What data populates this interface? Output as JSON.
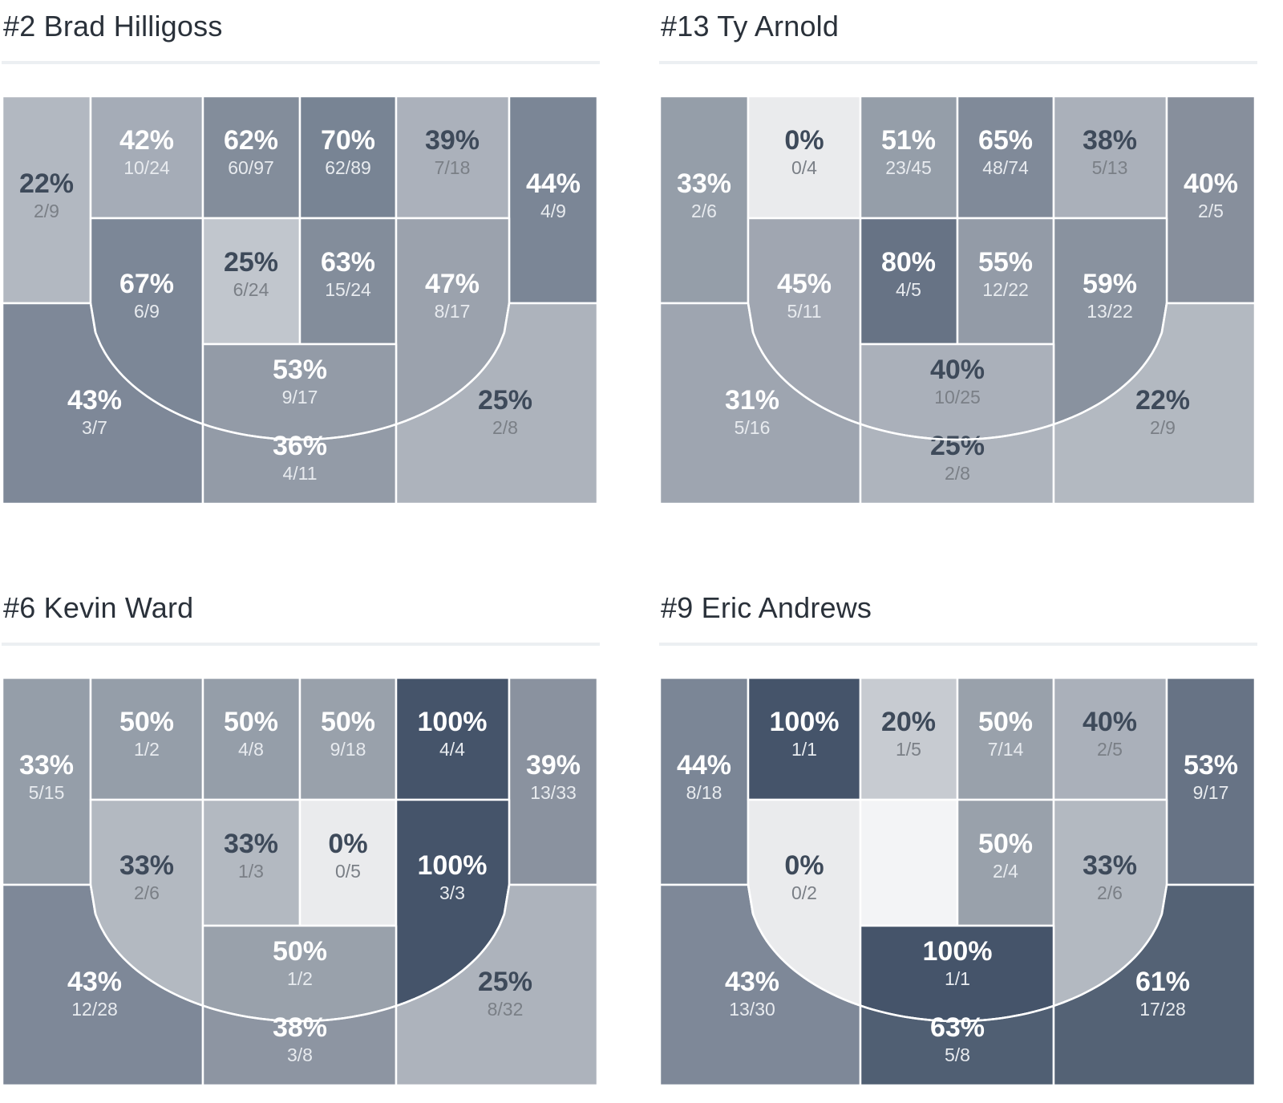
{
  "chart_data": [
    {
      "type": "heatmap",
      "title": "#2 Brad Hilligoss",
      "subtype": "basketball shot chart (zone FG%)",
      "zones": [
        {
          "zone": "left-corner-3",
          "pct": "22%",
          "made_att": "2/9",
          "color": "#b2b8c1"
        },
        {
          "zone": "left-wing-3",
          "pct": "43%",
          "made_att": "3/7",
          "color": "#7e8898"
        },
        {
          "zone": "left-mid-top",
          "pct": "42%",
          "made_att": "10/24",
          "color": "#a5acb7"
        },
        {
          "zone": "paint-left-top",
          "pct": "62%",
          "made_att": "60/97",
          "color": "#838d9b"
        },
        {
          "zone": "paint-right-top",
          "pct": "70%",
          "made_att": "62/89",
          "color": "#788494"
        },
        {
          "zone": "right-mid-top",
          "pct": "39%",
          "made_att": "7/18",
          "color": "#abb1bb"
        },
        {
          "zone": "right-corner-3",
          "pct": "44%",
          "made_att": "4/9",
          "color": "#7b8696"
        },
        {
          "zone": "left-mid-low",
          "pct": "67%",
          "made_att": "6/9",
          "color": "#7c8797"
        },
        {
          "zone": "paint-left",
          "pct": "25%",
          "made_att": "6/24",
          "color": "#c1c6cd"
        },
        {
          "zone": "paint-right",
          "pct": "63%",
          "made_att": "15/24",
          "color": "#838d9b"
        },
        {
          "zone": "right-mid-low",
          "pct": "47%",
          "made_att": "8/17",
          "color": "#9ba2ad"
        },
        {
          "zone": "free-throw",
          "pct": "53%",
          "made_att": "9/17",
          "color": "#939ba7"
        },
        {
          "zone": "top-key-3",
          "pct": "36%",
          "made_att": "4/11",
          "color": "#939ba7"
        },
        {
          "zone": "right-wing-3",
          "pct": "25%",
          "made_att": "2/8",
          "color": "#adb3bc"
        }
      ]
    },
    {
      "type": "heatmap",
      "title": "#13 Ty Arnold",
      "subtype": "basketball shot chart (zone FG%)",
      "zones": [
        {
          "zone": "left-corner-3",
          "pct": "33%",
          "made_att": "2/6",
          "color": "#959ea9"
        },
        {
          "zone": "left-wing-3",
          "pct": "31%",
          "made_att": "5/16",
          "color": "#9ea5b0"
        },
        {
          "zone": "left-mid-top",
          "pct": "0%",
          "made_att": "0/4",
          "color": "#eaebed"
        },
        {
          "zone": "paint-left-top",
          "pct": "51%",
          "made_att": "23/45",
          "color": "#959ea9"
        },
        {
          "zone": "paint-right-top",
          "pct": "65%",
          "made_att": "48/74",
          "color": "#808a99"
        },
        {
          "zone": "right-mid-top",
          "pct": "38%",
          "made_att": "5/13",
          "color": "#aab0ba"
        },
        {
          "zone": "right-corner-3",
          "pct": "40%",
          "made_att": "2/5",
          "color": "#878f9c"
        },
        {
          "zone": "left-mid-low",
          "pct": "45%",
          "made_att": "5/11",
          "color": "#a0a6b1"
        },
        {
          "zone": "paint-left",
          "pct": "80%",
          "made_att": "4/5",
          "color": "#677385"
        },
        {
          "zone": "paint-right",
          "pct": "55%",
          "made_att": "12/22",
          "color": "#939ba7"
        },
        {
          "zone": "right-mid-low",
          "pct": "59%",
          "made_att": "13/22",
          "color": "#89929f"
        },
        {
          "zone": "free-throw",
          "pct": "40%",
          "made_att": "10/25",
          "color": "#aab0ba"
        },
        {
          "zone": "top-key-3",
          "pct": "25%",
          "made_att": "2/8",
          "color": "#aeb4bd"
        },
        {
          "zone": "right-wing-3",
          "pct": "22%",
          "made_att": "2/9",
          "color": "#b3b9c1"
        }
      ]
    },
    {
      "type": "heatmap",
      "title": "#6 Kevin Ward",
      "subtype": "basketball shot chart (zone FG%)",
      "zones": [
        {
          "zone": "left-corner-3",
          "pct": "33%",
          "made_att": "5/15",
          "color": "#959ea9"
        },
        {
          "zone": "left-wing-3",
          "pct": "43%",
          "made_att": "12/28",
          "color": "#7e8898"
        },
        {
          "zone": "left-mid-top",
          "pct": "50%",
          "made_att": "1/2",
          "color": "#959ea9"
        },
        {
          "zone": "paint-left-top",
          "pct": "50%",
          "made_att": "4/8",
          "color": "#959ea9"
        },
        {
          "zone": "paint-right-top",
          "pct": "50%",
          "made_att": "9/18",
          "color": "#99a1ab"
        },
        {
          "zone": "right-mid-top",
          "pct": "100%",
          "made_att": "4/4",
          "color": "#45546a"
        },
        {
          "zone": "right-corner-3",
          "pct": "39%",
          "made_att": "13/33",
          "color": "#8a929f"
        },
        {
          "zone": "left-mid-low",
          "pct": "33%",
          "made_att": "2/6",
          "color": "#b3b9c1"
        },
        {
          "zone": "paint-left",
          "pct": "33%",
          "made_att": "1/3",
          "color": "#b3b9c1"
        },
        {
          "zone": "paint-right",
          "pct": "0%",
          "made_att": "0/5",
          "color": "#eaebed"
        },
        {
          "zone": "right-mid-low",
          "pct": "100%",
          "made_att": "3/3",
          "color": "#45546a"
        },
        {
          "zone": "free-throw",
          "pct": "50%",
          "made_att": "1/2",
          "color": "#99a1ab"
        },
        {
          "zone": "top-key-3",
          "pct": "38%",
          "made_att": "3/8",
          "color": "#8d95a2"
        },
        {
          "zone": "right-wing-3",
          "pct": "25%",
          "made_att": "8/32",
          "color": "#adb3bc"
        }
      ]
    },
    {
      "type": "heatmap",
      "title": "#9 Eric Andrews",
      "subtype": "basketball shot chart (zone FG%)",
      "zones": [
        {
          "zone": "left-corner-3",
          "pct": "44%",
          "made_att": "8/18",
          "color": "#7b8696"
        },
        {
          "zone": "left-wing-3",
          "pct": "43%",
          "made_att": "13/30",
          "color": "#7e8898"
        },
        {
          "zone": "left-mid-top",
          "pct": "100%",
          "made_att": "1/1",
          "color": "#45546a"
        },
        {
          "zone": "paint-left-top",
          "pct": "20%",
          "made_att": "1/5",
          "color": "#c7cbd1"
        },
        {
          "zone": "paint-right-top",
          "pct": "50%",
          "made_att": "7/14",
          "color": "#99a1ab"
        },
        {
          "zone": "right-mid-top",
          "pct": "40%",
          "made_att": "2/5",
          "color": "#aab0ba"
        },
        {
          "zone": "right-corner-3",
          "pct": "53%",
          "made_att": "9/17",
          "color": "#677385"
        },
        {
          "zone": "left-mid-low",
          "pct": "0%",
          "made_att": "0/2",
          "color": "#eaebed"
        },
        {
          "zone": "paint-left",
          "pct": "",
          "made_att": "",
          "color": "#f3f4f6"
        },
        {
          "zone": "paint-right",
          "pct": "50%",
          "made_att": "2/4",
          "color": "#99a1ab"
        },
        {
          "zone": "right-mid-low",
          "pct": "33%",
          "made_att": "2/6",
          "color": "#b3b9c1"
        },
        {
          "zone": "free-throw",
          "pct": "100%",
          "made_att": "1/1",
          "color": "#45546a"
        },
        {
          "zone": "top-key-3",
          "pct": "63%",
          "made_att": "5/8",
          "color": "#505f73"
        },
        {
          "zone": "right-wing-3",
          "pct": "61%",
          "made_att": "17/28",
          "color": "#546275"
        }
      ]
    }
  ],
  "panels": [
    {
      "title": "#2 Brad Hilligoss"
    },
    {
      "title": "#13 Ty Arnold"
    },
    {
      "title": "#6 Kevin Ward"
    },
    {
      "title": "#9 Eric Andrews"
    }
  ],
  "colors": {
    "title_text": "#2a313a",
    "divider": "#eceff2",
    "dark_label_pct": "#3e4a5a",
    "dark_label_frac": "#7a7f86",
    "light_label_pct": "#ffffff",
    "light_label_frac": "#e8ebef",
    "zone_border": "#ffffff"
  }
}
